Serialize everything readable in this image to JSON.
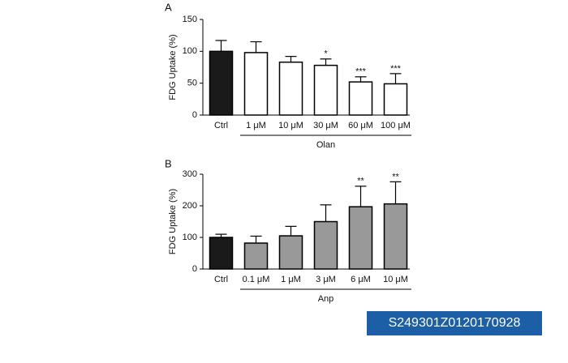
{
  "chart_data": [
    {
      "type": "bar",
      "panel": "A",
      "ylabel": "FDG Uptake (%)",
      "categories": [
        "Ctrl",
        "1 μM",
        "10 μM",
        "30 μM",
        "60 μM",
        "100 μM"
      ],
      "values": [
        100,
        98,
        83,
        78,
        52,
        49
      ],
      "errors": [
        17,
        17,
        9,
        10,
        8,
        16
      ],
      "colors": [
        "#1a1a1a",
        "#ffffff",
        "#ffffff",
        "#ffffff",
        "#ffffff",
        "#ffffff"
      ],
      "annotations": [
        null,
        null,
        null,
        "*",
        "***",
        "***"
      ],
      "group_label": "Olan",
      "ylim": [
        0,
        150
      ],
      "yticks": [
        0,
        50,
        100,
        150
      ]
    },
    {
      "type": "bar",
      "panel": "B",
      "ylabel": "FDG Uptake (%)",
      "categories": [
        "Ctrl",
        "0.1 μM",
        "1 μM",
        "3 μM",
        "6 μM",
        "10 μM"
      ],
      "values": [
        100,
        82,
        105,
        150,
        197,
        206
      ],
      "errors": [
        10,
        22,
        30,
        53,
        65,
        70
      ],
      "colors": [
        "#1a1a1a",
        "#999999",
        "#999999",
        "#999999",
        "#999999",
        "#999999"
      ],
      "annotations": [
        null,
        null,
        null,
        null,
        "**",
        "**"
      ],
      "group_label": "Anp",
      "ylim": [
        0,
        300
      ],
      "yticks": [
        0,
        100,
        200,
        300
      ]
    }
  ],
  "footer_id": "S249301Z0120170928"
}
